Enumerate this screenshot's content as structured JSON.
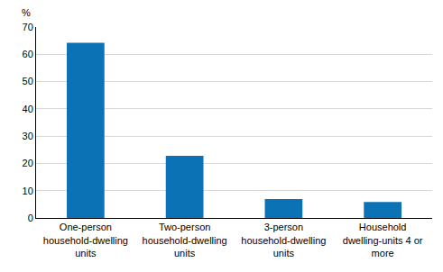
{
  "chart_data": {
    "type": "bar",
    "y_label": "%",
    "categories": [
      "One-person household-dwelling units",
      "Two-person household-dwelling units",
      "3-person household-dwelling units",
      "Household dwelling-units 4 or more"
    ],
    "values": [
      64.2,
      22.8,
      6.9,
      5.9
    ],
    "color": "#0b72b5",
    "ylim": [
      0,
      70
    ],
    "yticks": [
      0,
      10,
      20,
      30,
      40,
      50,
      60,
      70
    ],
    "grid": true
  }
}
